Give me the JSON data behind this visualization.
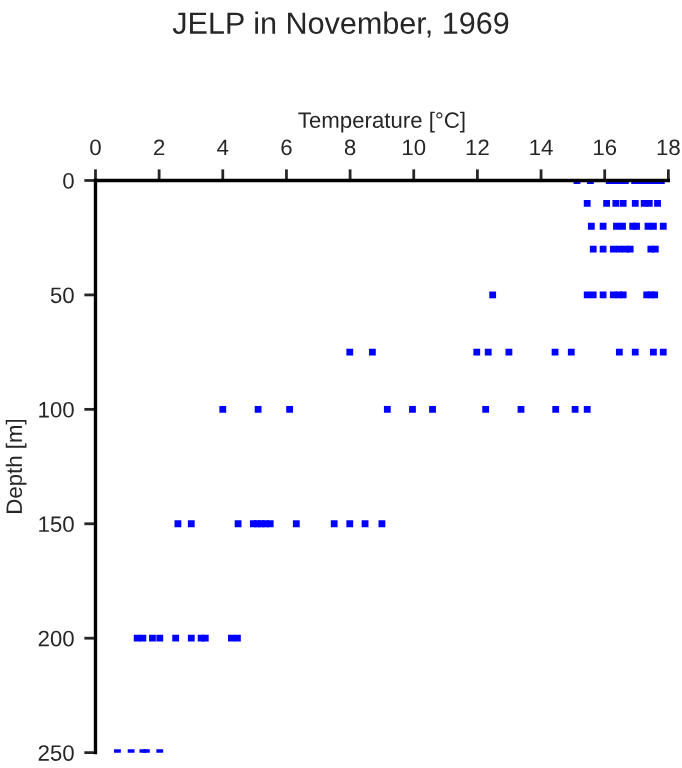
{
  "chart_data": {
    "type": "scatter",
    "title": "JELP in November, 1969",
    "xlabel": "Temperature [°C]",
    "ylabel": "Depth [m]",
    "xlim": [
      0,
      18
    ],
    "xticks": [
      0,
      2,
      4,
      6,
      8,
      10,
      12,
      14,
      16,
      18
    ],
    "ylim": [
      250,
      0
    ],
    "yticks": [
      0,
      50,
      100,
      150,
      200,
      250
    ],
    "grid": false,
    "marker": "square",
    "series": [
      {
        "color": "#0000ff",
        "x": [
          15.13,
          15.55,
          16.14,
          16.29,
          16.44,
          16.65,
          16.94,
          17.15,
          17.32,
          17.45,
          17.57,
          17.78,
          15.45,
          16.06,
          16.35,
          16.58,
          16.96,
          17.24,
          17.4,
          17.66,
          15.58,
          15.95,
          16.37,
          16.56,
          16.88,
          17.0,
          17.36,
          17.53,
          17.84,
          15.64,
          15.95,
          16.27,
          16.46,
          16.65,
          16.8,
          17.45,
          17.59,
          12.48,
          15.45,
          15.64,
          15.95,
          16.27,
          16.44,
          16.58,
          17.32,
          17.45,
          17.57,
          7.99,
          8.7,
          11.98,
          12.34,
          12.99,
          14.44,
          14.95,
          16.46,
          16.96,
          17.53,
          17.84,
          4.0,
          5.11,
          6.1,
          9.17,
          9.96,
          10.59,
          12.26,
          13.37,
          14.46,
          15.07,
          15.45,
          2.59,
          3.01,
          4.48,
          4.96,
          5.09,
          5.21,
          5.34,
          5.49,
          6.31,
          7.5,
          7.99,
          8.47,
          9.0,
          1.31,
          1.49,
          1.79,
          2.02,
          2.52,
          3.01,
          3.32,
          3.45,
          4.27,
          4.46,
          0.69,
          1.12,
          1.49,
          1.6,
          2.02
        ],
        "values": [
          0,
          0,
          0,
          0,
          0,
          0,
          0,
          0,
          0,
          0,
          0,
          0,
          10,
          10,
          10,
          10,
          10,
          10,
          10,
          10,
          20,
          20,
          20,
          20,
          20,
          20,
          20,
          20,
          20,
          30,
          30,
          30,
          30,
          30,
          30,
          30,
          30,
          50,
          50,
          50,
          50,
          50,
          50,
          50,
          50,
          50,
          50,
          75,
          75,
          75,
          75,
          75,
          75,
          75,
          75,
          75,
          75,
          75,
          100,
          100,
          100,
          100,
          100,
          100,
          100,
          100,
          100,
          100,
          100,
          150,
          150,
          150,
          150,
          150,
          150,
          150,
          150,
          150,
          150,
          150,
          150,
          150,
          200,
          200,
          200,
          200,
          200,
          200,
          200,
          200,
          200,
          200,
          250,
          250,
          250,
          250,
          250
        ]
      }
    ]
  }
}
